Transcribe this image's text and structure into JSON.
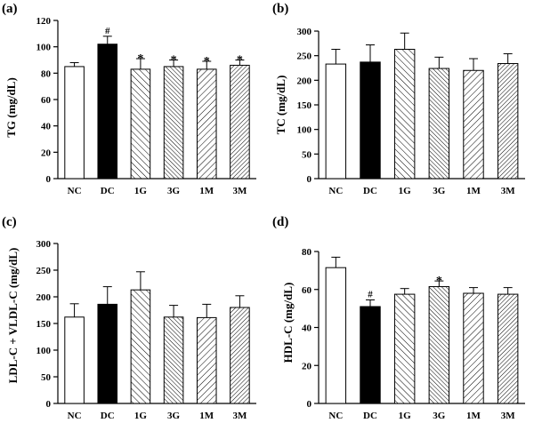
{
  "chart_data": [
    {
      "panel": "(a)",
      "type": "bar",
      "ylabel": "TG (mg/dL)",
      "ylim": [
        0,
        120
      ],
      "yticks": [
        0,
        20,
        40,
        60,
        80,
        100,
        120
      ],
      "categories": [
        "NC",
        "DC",
        "1G",
        "3G",
        "1M",
        "3M"
      ],
      "values": [
        85,
        102,
        83,
        85,
        83,
        86
      ],
      "errors": [
        3,
        6,
        8,
        5,
        6,
        4
      ],
      "markers": [
        "",
        "#",
        "*",
        "*",
        "*",
        "*"
      ]
    },
    {
      "panel": "(b)",
      "type": "bar",
      "ylabel": "TC (mg/dL)",
      "ylim": [
        0,
        300
      ],
      "yticks": [
        0,
        50,
        100,
        150,
        200,
        250,
        300
      ],
      "categories": [
        "NC",
        "DC",
        "1G",
        "3G",
        "1M",
        "3M"
      ],
      "values": [
        233,
        237,
        263,
        224,
        220,
        234
      ],
      "errors": [
        30,
        35,
        33,
        23,
        24,
        20
      ],
      "markers": [
        "",
        "",
        "",
        "",
        "",
        ""
      ]
    },
    {
      "panel": "(c)",
      "type": "bar",
      "ylabel": "LDL-C + VLDL-C (mg/dL)",
      "ylim": [
        0,
        300
      ],
      "yticks": [
        0,
        50,
        100,
        150,
        200,
        250,
        300
      ],
      "categories": [
        "NC",
        "DC",
        "1G",
        "3G",
        "1M",
        "3M"
      ],
      "values": [
        162,
        186,
        213,
        162,
        161,
        180
      ],
      "errors": [
        25,
        33,
        34,
        22,
        25,
        22
      ],
      "markers": [
        "",
        "",
        "",
        "",
        "",
        ""
      ]
    },
    {
      "panel": "(d)",
      "type": "bar",
      "ylabel": "HDL-C (mg/dL)",
      "ylim": [
        0,
        80
      ],
      "yticks": [
        0,
        20,
        40,
        60,
        80
      ],
      "categories": [
        "NC",
        "DC",
        "1G",
        "3G",
        "1M",
        "3M"
      ],
      "values": [
        71.5,
        51,
        57.5,
        61.5,
        58,
        57.5
      ],
      "errors": [
        5.5,
        3.5,
        3.0,
        3.0,
        3.0,
        3.5
      ],
      "markers": [
        "",
        "#",
        "",
        "*",
        "",
        ""
      ]
    }
  ],
  "bar_styles": [
    "white",
    "black",
    "hatch-forward",
    "hatch-forward-dense",
    "hatch-back",
    "hatch-back-dense"
  ],
  "colors": {
    "axis": "#000000",
    "bar_stroke": "#000000",
    "solid_fill": "#000000",
    "open_fill": "#ffffff"
  }
}
